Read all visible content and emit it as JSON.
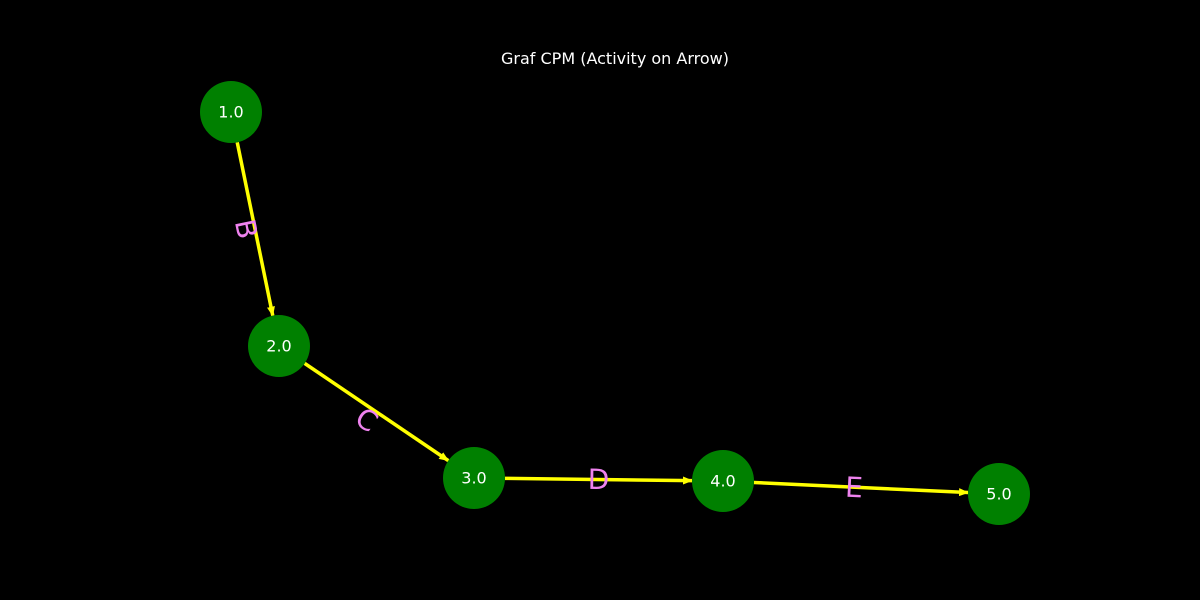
{
  "title": "Graf CPM (Activity on Arrow)",
  "colors": {
    "background": "#000000",
    "node_fill": "#008000",
    "node_text": "#ffffff",
    "edge": "#ffff00",
    "edge_label": "#ee82ee",
    "title": "#ffffff"
  },
  "nodes": [
    {
      "id": "n1",
      "label": "1.0"
    },
    {
      "id": "n2",
      "label": "2.0"
    },
    {
      "id": "n3",
      "label": "3.0"
    },
    {
      "id": "n4",
      "label": "4.0"
    },
    {
      "id": "n5",
      "label": "5.0"
    }
  ],
  "edges": [
    {
      "id": "eB",
      "from": "n1",
      "to": "n2",
      "label": "B"
    },
    {
      "id": "eC",
      "from": "n2",
      "to": "n3",
      "label": "C"
    },
    {
      "id": "eD",
      "from": "n3",
      "to": "n4",
      "label": "D"
    },
    {
      "id": "eE",
      "from": "n4",
      "to": "n5",
      "label": "E"
    }
  ]
}
